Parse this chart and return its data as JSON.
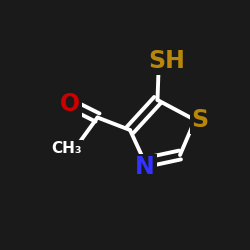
{
  "background_color": "#1a1a1a",
  "bond_color": "#ffffff",
  "bond_width": 2.8,
  "atom_labels": {
    "O": {
      "text": "O",
      "color": "#cc0000",
      "fontsize": 17
    },
    "N": {
      "text": "N",
      "color": "#3333ff",
      "fontsize": 17
    },
    "S_ring": {
      "text": "S",
      "color": "#b8860b",
      "fontsize": 17
    },
    "SH": {
      "text": "SH",
      "color": "#b8860b",
      "fontsize": 17
    }
  },
  "figsize": [
    2.5,
    2.5
  ],
  "dpi": 100,
  "xlim": [
    0,
    10
  ],
  "ylim": [
    0,
    10
  ]
}
